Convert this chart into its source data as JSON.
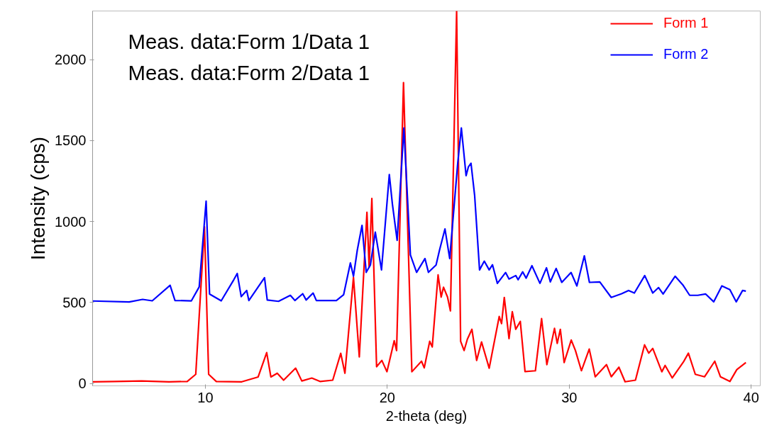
{
  "chart_data": {
    "type": "line",
    "xlabel": "2-theta (deg)",
    "ylabel": "Intensity (cps)",
    "annotations": [
      "Meas. data:Form 1/Data 1",
      "Meas. data:Form 2/Data 1"
    ],
    "xlim": [
      3.8,
      40.5
    ],
    "ylim": [
      -15,
      2300
    ],
    "xticks": [
      10,
      20,
      30,
      40
    ],
    "yticks": [
      0,
      500,
      1000,
      1500,
      2000
    ],
    "grid": false,
    "legend": "top right",
    "marker": "none",
    "line_style": "solid",
    "series": [
      {
        "name": "Form 1",
        "color": "#ff0000",
        "x": [
          3.8,
          5.0,
          6.5,
          8.0,
          9.0,
          9.47,
          9.95,
          10.18,
          10.6,
          12.0,
          12.9,
          13.37,
          13.6,
          13.95,
          14.3,
          14.96,
          15.3,
          15.85,
          16.3,
          17.0,
          17.44,
          17.67,
          18.14,
          18.46,
          18.88,
          19.0,
          19.15,
          19.41,
          19.7,
          19.98,
          20.38,
          20.51,
          20.89,
          21.35,
          21.88,
          22.03,
          22.33,
          22.47,
          22.79,
          22.96,
          23.09,
          23.31,
          23.47,
          23.81,
          24.03,
          24.22,
          24.4,
          24.65,
          24.91,
          25.18,
          25.6,
          26.15,
          26.28,
          26.43,
          26.69,
          26.87,
          27.06,
          27.31,
          27.57,
          28.14,
          28.48,
          28.77,
          29.19,
          29.34,
          29.51,
          29.72,
          30.11,
          30.34,
          30.67,
          31.1,
          31.43,
          32.05,
          32.31,
          32.73,
          33.07,
          33.64,
          34.14,
          34.37,
          34.59,
          35.09,
          35.27,
          35.66,
          36.3,
          36.55,
          36.93,
          37.44,
          38.0,
          38.31,
          38.83,
          39.21,
          39.71
        ],
        "values": [
          10,
          12,
          15,
          10,
          12,
          56,
          967,
          56,
          12,
          10,
          40,
          190,
          40,
          63,
          20,
          94,
          15,
          33,
          12,
          20,
          186,
          63,
          655,
          164,
          1057,
          718,
          1142,
          103,
          142,
          72,
          264,
          203,
          1858,
          72,
          137,
          96,
          260,
          225,
          670,
          533,
          594,
          533,
          448,
          2300,
          260,
          203,
          273,
          334,
          142,
          256,
          94,
          413,
          369,
          531,
          277,
          443,
          334,
          383,
          73,
          78,
          400,
          116,
          340,
          247,
          334,
          129,
          268,
          203,
          78,
          212,
          41,
          116,
          41,
          100,
          10,
          20,
          238,
          187,
          216,
          72,
          111,
          34,
          137,
          187,
          56,
          41,
          137,
          41,
          12,
          85,
          129
        ]
      },
      {
        "name": "Form 2",
        "color": "#0000ff",
        "x": [
          3.8,
          5.81,
          6.55,
          7.08,
          8.06,
          8.33,
          9.23,
          9.66,
          10.04,
          10.23,
          10.87,
          11.56,
          11.75,
          11.97,
          12.27,
          12.39,
          13.25,
          13.4,
          14.02,
          14.67,
          14.92,
          15.35,
          15.54,
          15.92,
          16.1,
          17.2,
          17.6,
          17.97,
          18.14,
          18.35,
          18.61,
          18.84,
          19.07,
          19.34,
          19.68,
          20.11,
          20.28,
          20.54,
          20.91,
          21.27,
          21.61,
          22.07,
          22.26,
          22.68,
          22.87,
          23.17,
          23.43,
          23.87,
          24.07,
          24.33,
          24.46,
          24.6,
          24.8,
          25.07,
          25.33,
          25.6,
          25.78,
          26.05,
          26.5,
          26.69,
          27.06,
          27.19,
          27.44,
          27.63,
          27.95,
          28.39,
          28.75,
          28.96,
          29.28,
          29.59,
          30.1,
          30.42,
          30.83,
          31.11,
          31.68,
          32.31,
          32.88,
          33.26,
          33.58,
          34.15,
          34.59,
          34.91,
          35.16,
          35.82,
          36.24,
          36.62,
          37.06,
          37.5,
          37.94,
          38.39,
          38.83,
          39.18,
          39.53,
          39.71
        ],
        "values": [
          509,
          503,
          519,
          510,
          606,
          512,
          510,
          596,
          1126,
          552,
          510,
          640,
          679,
          536,
          574,
          512,
          653,
          515,
          507,
          544,
          512,
          554,
          515,
          558,
          512,
          512,
          548,
          744,
          662,
          823,
          976,
          686,
          731,
          934,
          701,
          1290,
          1107,
          884,
          1578,
          793,
          686,
          771,
          686,
          731,
          823,
          954,
          771,
          1360,
          1578,
          1283,
          1338,
          1360,
          1161,
          701,
          755,
          701,
          733,
          618,
          685,
          645,
          666,
          640,
          689,
          650,
          727,
          618,
          714,
          627,
          710,
          624,
          685,
          602,
          788,
          624,
          627,
          531,
          554,
          574,
          558,
          666,
          558,
          592,
          552,
          662,
          609,
          544,
          544,
          552,
          504,
          602,
          579,
          504,
          574,
          570
        ]
      }
    ]
  }
}
